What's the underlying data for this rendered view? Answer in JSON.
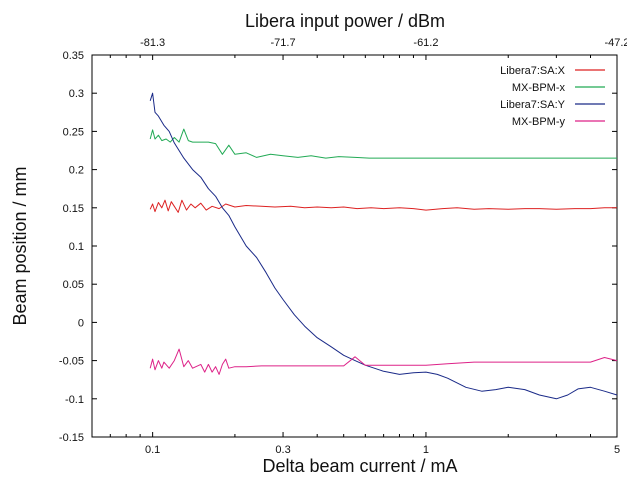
{
  "chart_data": {
    "type": "line",
    "xlabel": "Delta beam current / mA",
    "ylabel": "Beam position / mm",
    "top_xlabel": "Libera input power / dBm",
    "xscale": "log",
    "xlim": [
      0.06,
      5
    ],
    "ylim": [
      -0.15,
      0.35
    ],
    "x_ticks": [
      0.1,
      0.3,
      1,
      5
    ],
    "x_tick_labels": [
      "0.1",
      "0.3",
      "1",
      "5"
    ],
    "y_ticks": [
      -0.15,
      -0.1,
      -0.05,
      0,
      0.05,
      0.1,
      0.15,
      0.2,
      0.25,
      0.3,
      0.35
    ],
    "y_tick_labels": [
      "-0.15",
      "-0.1",
      "-0.05",
      "0",
      "0.05",
      "0.1",
      "0.15",
      "0.2",
      "0.25",
      "0.3",
      "0.35"
    ],
    "top_x_ticks": [
      0.1,
      0.3,
      1,
      5
    ],
    "top_x_tick_labels": [
      "-81.3",
      "-71.7",
      "-61.2",
      "-47.2"
    ],
    "grid": false,
    "legend_position": "top-right",
    "series": [
      {
        "name": "Libera7:SA:X",
        "color": "#dd2222",
        "x": [
          0.098,
          0.1,
          0.102,
          0.105,
          0.108,
          0.111,
          0.114,
          0.117,
          0.12,
          0.124,
          0.128,
          0.133,
          0.138,
          0.143,
          0.15,
          0.157,
          0.165,
          0.175,
          0.185,
          0.2,
          0.22,
          0.25,
          0.28,
          0.32,
          0.36,
          0.4,
          0.45,
          0.5,
          0.56,
          0.63,
          0.7,
          0.8,
          0.9,
          1.0,
          1.15,
          1.3,
          1.5,
          1.7,
          2.0,
          2.3,
          2.6,
          3.0,
          3.5,
          4.0,
          4.5,
          5.0
        ],
        "y": [
          0.148,
          0.155,
          0.145,
          0.157,
          0.15,
          0.16,
          0.146,
          0.158,
          0.152,
          0.144,
          0.16,
          0.147,
          0.155,
          0.15,
          0.156,
          0.147,
          0.152,
          0.149,
          0.155,
          0.151,
          0.153,
          0.152,
          0.151,
          0.152,
          0.15,
          0.151,
          0.15,
          0.151,
          0.149,
          0.15,
          0.149,
          0.15,
          0.149,
          0.147,
          0.149,
          0.15,
          0.148,
          0.149,
          0.148,
          0.149,
          0.149,
          0.148,
          0.149,
          0.149,
          0.15,
          0.15
        ]
      },
      {
        "name": "MX-BPM-x",
        "color": "#22aa55",
        "x": [
          0.098,
          0.1,
          0.102,
          0.105,
          0.108,
          0.112,
          0.116,
          0.12,
          0.125,
          0.13,
          0.135,
          0.14,
          0.15,
          0.16,
          0.17,
          0.18,
          0.19,
          0.2,
          0.22,
          0.24,
          0.27,
          0.3,
          0.34,
          0.38,
          0.43,
          0.48,
          0.55,
          0.62,
          0.7,
          0.8,
          0.9,
          1.0,
          1.2,
          1.4,
          1.6,
          1.9,
          2.2,
          2.6,
          3.0,
          3.5,
          4.0,
          4.5,
          5.0
        ],
        "y": [
          0.24,
          0.252,
          0.24,
          0.245,
          0.238,
          0.24,
          0.236,
          0.242,
          0.236,
          0.253,
          0.238,
          0.236,
          0.236,
          0.236,
          0.234,
          0.22,
          0.232,
          0.22,
          0.222,
          0.216,
          0.22,
          0.218,
          0.216,
          0.218,
          0.215,
          0.217,
          0.216,
          0.215,
          0.215,
          0.215,
          0.215,
          0.215,
          0.215,
          0.215,
          0.215,
          0.215,
          0.215,
          0.215,
          0.215,
          0.215,
          0.215,
          0.215,
          0.215
        ]
      },
      {
        "name": "Libera7:SA:Y",
        "color": "#1a2a88",
        "x": [
          0.098,
          0.1,
          0.102,
          0.105,
          0.11,
          0.115,
          0.12,
          0.13,
          0.14,
          0.15,
          0.16,
          0.17,
          0.18,
          0.19,
          0.2,
          0.22,
          0.24,
          0.26,
          0.28,
          0.3,
          0.33,
          0.36,
          0.4,
          0.45,
          0.5,
          0.55,
          0.6,
          0.7,
          0.8,
          0.9,
          1.0,
          1.1,
          1.2,
          1.4,
          1.6,
          1.8,
          2.0,
          2.3,
          2.6,
          3.0,
          3.3,
          3.6,
          4.0,
          4.5,
          5.0
        ],
        "y": [
          0.29,
          0.3,
          0.275,
          0.27,
          0.258,
          0.25,
          0.235,
          0.215,
          0.2,
          0.19,
          0.175,
          0.165,
          0.15,
          0.14,
          0.125,
          0.1,
          0.085,
          0.065,
          0.045,
          0.03,
          0.01,
          -0.005,
          -0.02,
          -0.032,
          -0.043,
          -0.05,
          -0.056,
          -0.064,
          -0.068,
          -0.066,
          -0.065,
          -0.068,
          -0.073,
          -0.085,
          -0.09,
          -0.088,
          -0.085,
          -0.088,
          -0.095,
          -0.1,
          -0.095,
          -0.087,
          -0.085,
          -0.09,
          -0.095
        ]
      },
      {
        "name": "MX-BPM-y",
        "color": "#dd2288",
        "x": [
          0.098,
          0.1,
          0.102,
          0.105,
          0.108,
          0.11,
          0.115,
          0.12,
          0.125,
          0.13,
          0.135,
          0.14,
          0.15,
          0.155,
          0.16,
          0.165,
          0.17,
          0.175,
          0.18,
          0.185,
          0.19,
          0.2,
          0.22,
          0.25,
          0.3,
          0.35,
          0.4,
          0.5,
          0.55,
          0.6,
          0.7,
          0.8,
          0.9,
          1.0,
          1.2,
          1.5,
          2.0,
          2.5,
          3.0,
          3.5,
          4.0,
          4.5,
          5.0
        ],
        "y": [
          -0.06,
          -0.048,
          -0.062,
          -0.05,
          -0.06,
          -0.052,
          -0.06,
          -0.05,
          -0.035,
          -0.058,
          -0.05,
          -0.06,
          -0.055,
          -0.065,
          -0.055,
          -0.065,
          -0.058,
          -0.068,
          -0.055,
          -0.048,
          -0.06,
          -0.058,
          -0.058,
          -0.057,
          -0.057,
          -0.057,
          -0.057,
          -0.057,
          -0.045,
          -0.056,
          -0.056,
          -0.056,
          -0.056,
          -0.056,
          -0.054,
          -0.052,
          -0.052,
          -0.052,
          -0.052,
          -0.052,
          -0.052,
          -0.046,
          -0.05
        ]
      }
    ]
  }
}
